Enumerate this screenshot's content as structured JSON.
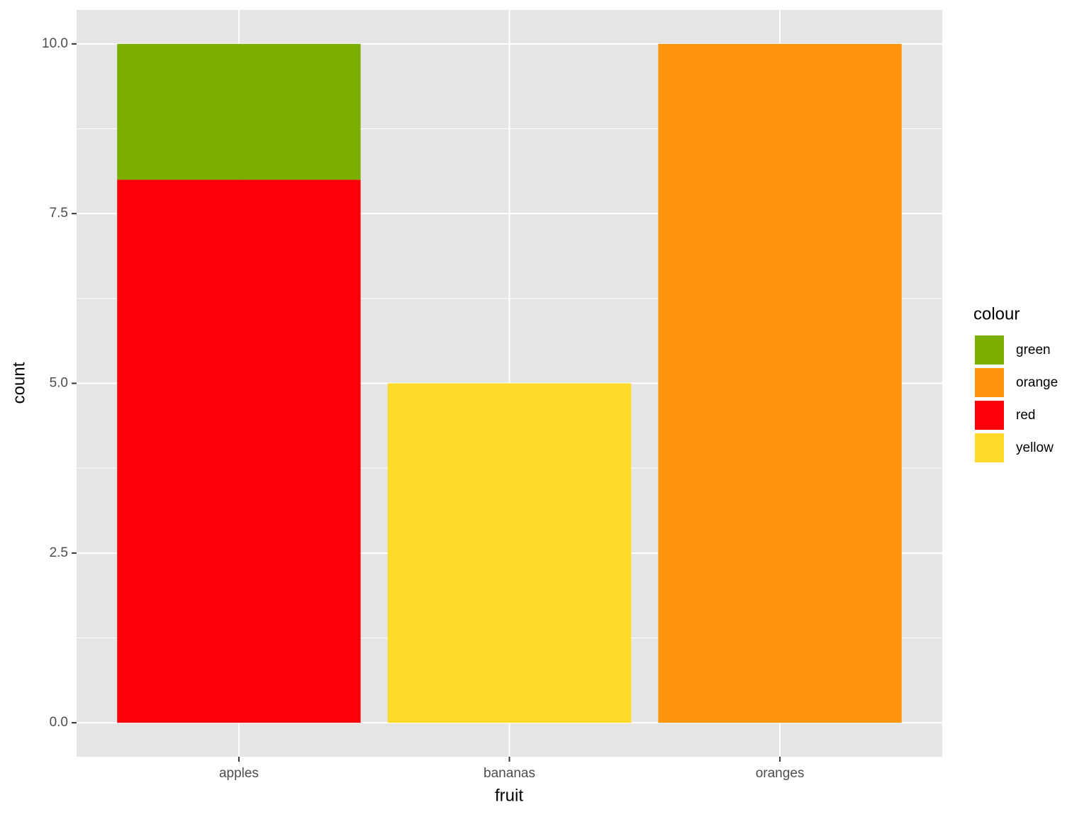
{
  "chart_data": {
    "type": "bar",
    "stacked": true,
    "x_label": "fruit",
    "y_label": "count",
    "legend_title": "colour",
    "categories": [
      "apples",
      "bananas",
      "oranges"
    ],
    "series": [
      {
        "name": "green",
        "color": "#7CAE00",
        "values": [
          2,
          null,
          null
        ]
      },
      {
        "name": "orange",
        "color": "#FF950E",
        "values": [
          null,
          null,
          10
        ]
      },
      {
        "name": "red",
        "color": "#FC0008",
        "values": [
          8,
          null,
          null
        ]
      },
      {
        "name": "yellow",
        "color": "#FFDB29",
        "values": [
          null,
          5,
          null
        ]
      }
    ],
    "ylim": [
      -0.5,
      10.5
    ],
    "yticks": [
      {
        "value": 0,
        "label": "0.0"
      },
      2.5,
      {
        "value": 5,
        "label": "5.0"
      },
      7.5,
      {
        "value": 10,
        "label": "10.0"
      }
    ],
    "grid": true,
    "legend": "right"
  }
}
